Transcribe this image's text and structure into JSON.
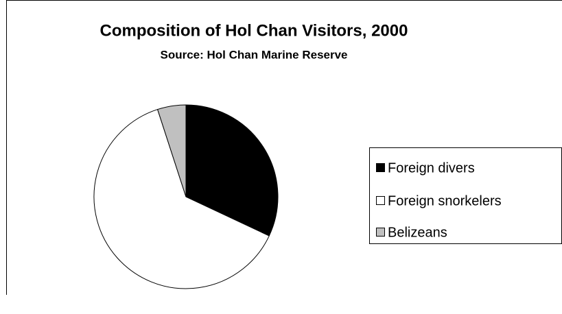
{
  "chart_data": {
    "type": "pie",
    "title": "Composition of Hol Chan Visitors, 2000",
    "subtitle": "Source: Hol Chan Marine Reserve",
    "categories": [
      "Foreign divers",
      "Foreign snorkelers",
      "Belizeans"
    ],
    "values": [
      32,
      63,
      5
    ],
    "colors": [
      "#000000",
      "#ffffff",
      "#c0c0c0"
    ],
    "legend": "right"
  }
}
